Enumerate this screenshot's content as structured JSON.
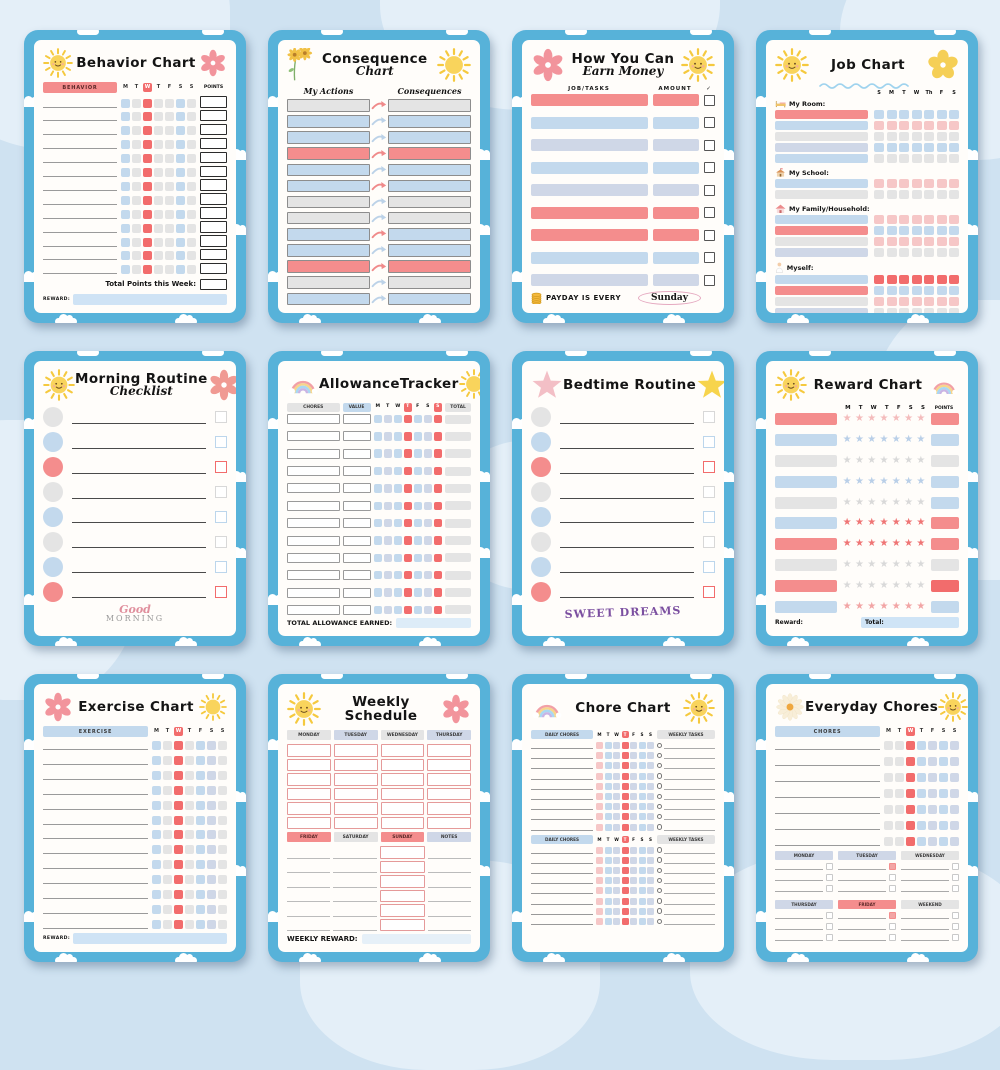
{
  "palette": {
    "pageBg": "#cfe2f1",
    "cardBlue": "#57b2d9",
    "paper": "#fffdfa",
    "pink": "#f48d8d",
    "lightPink": "#f6c7c7",
    "red": "#f26c6c",
    "blue": "#c3d9ed",
    "lavender": "#cfd7e7",
    "gray": "#e4e4e4",
    "yellow": "#f7d24d",
    "purple": "#7b4fa0",
    "ovalPink": "#e5a9c0",
    "rewardBar": "#cfe3f5",
    "pinkStar": "#f2a5a5",
    "lightPinkStar": "#f4bcbc",
    "blueStar": "#b9cfe8",
    "grayStar": "#d9d9d9",
    "redStar": "#ef7575"
  },
  "cards": [
    {
      "id": "behavior-chart",
      "type": "daygrid",
      "title": "Behavior Chart",
      "icon_left": "sun",
      "icon_right": "flower-pink",
      "header_label": "BEHAVIOR",
      "header_color": "pink",
      "days": [
        "M",
        "T",
        "W",
        "T",
        "F",
        "S",
        "S"
      ],
      "red_day_index": 2,
      "points_header": "POINTS",
      "has_points": true,
      "rows": 13,
      "square_colors": [
        "blue",
        "gray",
        "red",
        "gray",
        "gray",
        "blue",
        "gray"
      ],
      "footer_total_label": "Total Points this Week:",
      "reward_label": "REWARD:"
    },
    {
      "id": "consequence-chart",
      "type": "consequence",
      "title_main": "Consequence",
      "title_script": "Chart",
      "icon_left": "flowers-yellow",
      "icon_right": "sun-plain",
      "col_left": "My Actions",
      "col_right": "Consequences",
      "row_colors": [
        "gray",
        "blue",
        "blue",
        "pink",
        "blue",
        "blue",
        "gray",
        "gray",
        "blue",
        "blue",
        "pink",
        "gray",
        "blue"
      ],
      "arrow_colors": [
        "pink",
        "blue",
        "blue",
        "pink",
        "blue",
        "pink",
        "blue",
        "blue",
        "pink",
        "blue",
        "pink",
        "blue",
        "blue"
      ]
    },
    {
      "id": "earn-money",
      "type": "earnmoney",
      "title_main": "How You Can",
      "title_script": "Earn Money",
      "icon_left": "flower-pink",
      "icon_right": "sun",
      "col_job": "JOB/TASKS",
      "col_amount": "AMOUNT",
      "check_header": "✓",
      "row_colors": [
        "pink",
        "blue",
        "lavender",
        "blue",
        "lavender",
        "pink",
        "pink",
        "blue",
        "lavender"
      ],
      "payday_label": "PAYDAY IS EVERY",
      "payday_value": "Sunday"
    },
    {
      "id": "job-chart",
      "type": "job",
      "title": "Job Chart",
      "icon_left": "sun",
      "icon_right": "flower-yellow",
      "days": [
        "S",
        "M",
        "T",
        "W",
        "Th",
        "F",
        "S"
      ],
      "sections": [
        {
          "label": "My Room:",
          "icon": "bed",
          "rows": [
            {
              "bar": "pink",
              "sq": "blue"
            },
            {
              "bar": "blue",
              "sq": "pink"
            },
            {
              "bar": "gray",
              "sq": "gray"
            },
            {
              "bar": "lavender",
              "sq": "blue"
            },
            {
              "bar": "blue",
              "sq": "gray"
            }
          ]
        },
        {
          "label": "My School:",
          "icon": "school",
          "rows": [
            {
              "bar": "blue",
              "sq": "pink"
            },
            {
              "bar": "gray",
              "sq": "gray"
            }
          ]
        },
        {
          "label": "My Family/Household:",
          "icon": "house",
          "rows": [
            {
              "bar": "blue",
              "sq": "pink"
            },
            {
              "bar": "pink",
              "sq": "blue"
            },
            {
              "bar": "gray",
              "sq": "pink"
            },
            {
              "bar": "lavender",
              "sq": "gray"
            }
          ]
        },
        {
          "label": "Myself:",
          "icon": "person",
          "rows": [
            {
              "bar": "blue",
              "sq": "red"
            },
            {
              "bar": "pink",
              "sq": "blue"
            },
            {
              "bar": "gray",
              "sq": "pink"
            },
            {
              "bar": "lavender",
              "sq": "gray"
            }
          ]
        }
      ]
    },
    {
      "id": "morning-routine",
      "type": "checklist",
      "title_main": "Morning Routine",
      "title_script": "Checklist",
      "icon_left": "sun",
      "icon_right": "flower-salmon",
      "row_colors": [
        "gray",
        "blue",
        "pink",
        "gray",
        "blue",
        "gray",
        "blue",
        "pink"
      ],
      "footer_kind": "logo",
      "footer_script": "Good",
      "footer_caps": "MORNING"
    },
    {
      "id": "allowance-tracker",
      "type": "allowance",
      "title": "AllowanceTracker",
      "icon_left": "rainbow",
      "icon_right": "sun-plain",
      "col_chores": "CHORES",
      "col_value": "VALUE",
      "col_total": "TOTAL",
      "days": [
        "M",
        "T",
        "W",
        "T",
        "F",
        "S",
        "S"
      ],
      "red_days": [
        3,
        6
      ],
      "rows": 12,
      "square_colors": [
        "blue",
        "lavender",
        "blue",
        "red",
        "blue",
        "lavender",
        "red"
      ],
      "footer_label": "TOTAL ALLOWANCE EARNED:"
    },
    {
      "id": "bedtime-routine",
      "type": "checklist",
      "title_main": "Bedtime Routine",
      "title_script": "",
      "icon_left": "star-pink",
      "icon_right": "star-yellow",
      "row_colors": [
        "gray",
        "blue",
        "pink",
        "gray",
        "blue",
        "gray",
        "blue",
        "pink"
      ],
      "footer_kind": "dreams",
      "footer_text": "SWEET DREAMS"
    },
    {
      "id": "reward-chart",
      "type": "reward",
      "title": "Reward Chart",
      "icon_left": "sun",
      "icon_right": "rainbow",
      "days": [
        "M",
        "T",
        "W",
        "T",
        "F",
        "S",
        "S"
      ],
      "points_header": "POINTS",
      "rows": [
        {
          "bar": "pink",
          "stars": "lightPinkStar",
          "cell": "pink"
        },
        {
          "bar": "blue",
          "stars": "blueStar",
          "cell": "blue"
        },
        {
          "bar": "gray",
          "stars": "grayStar",
          "cell": "gray"
        },
        {
          "bar": "blue",
          "stars": "blueStar",
          "cell": "blue"
        },
        {
          "bar": "gray",
          "stars": "grayStar",
          "cell": "blue"
        },
        {
          "bar": "blue",
          "stars": "redStar",
          "cell": "pink"
        },
        {
          "bar": "pink",
          "stars": "redStar",
          "cell": "pink"
        },
        {
          "bar": "gray",
          "stars": "grayStar",
          "cell": "gray"
        },
        {
          "bar": "pink",
          "stars": "grayStar",
          "cell": "red"
        },
        {
          "bar": "blue",
          "stars": "pinkStar",
          "cell": "blue"
        }
      ],
      "reward_label": "Reward:",
      "total_label": "Total:"
    },
    {
      "id": "exercise-chart",
      "type": "daygrid",
      "title": "Exercise Chart",
      "icon_left": "flower-pink",
      "icon_right": "sun-plain",
      "header_label": "EXERCISE",
      "header_color": "blue",
      "days": [
        "M",
        "T",
        "W",
        "T",
        "F",
        "S",
        "S"
      ],
      "red_day_index": 2,
      "points_header": "",
      "has_points": false,
      "rows": 13,
      "square_colors": [
        "blue",
        "gray",
        "red",
        "gray",
        "blue",
        "lavender",
        "gray"
      ],
      "reward_label": "REWARD:"
    },
    {
      "id": "weekly-schedule",
      "type": "weekly",
      "title_line1": "Weekly",
      "title_line2": "Schedule",
      "icon_left": "sun",
      "icon_right": "flower-pink",
      "top_cols": [
        {
          "label": "MONDAY",
          "color": "gray",
          "cell": "box"
        },
        {
          "label": "TUESDAY",
          "color": "lavender",
          "cell": "box"
        },
        {
          "label": "WEDNESDAY",
          "color": "gray",
          "cell": "box"
        },
        {
          "label": "THURSDAY",
          "color": "lavender",
          "cell": "box"
        }
      ],
      "bottom_cols": [
        {
          "label": "FRIDAY",
          "color": "pink",
          "cell": "line"
        },
        {
          "label": "SATURDAY",
          "color": "gray",
          "cell": "line"
        },
        {
          "label": "SUNDAY",
          "color": "pink",
          "cell": "box"
        },
        {
          "label": "NOTES",
          "color": "lavender",
          "cell": "line"
        }
      ],
      "top_rows": 6,
      "bottom_rows": 6,
      "footer_label": "WEEKLY REWARD:"
    },
    {
      "id": "chore-chart",
      "type": "chore",
      "title": "Chore Chart",
      "icon_left": "rainbow",
      "icon_right": "sun",
      "daily_header": "DAILY CHORES",
      "weekly_header": "WEEKLY TASKS",
      "days": [
        "M",
        "T",
        "W",
        "T",
        "F",
        "S",
        "S"
      ],
      "red_day_index": 3,
      "square_colors": [
        "lightPink",
        "blue",
        "lavender",
        "red",
        "lavender",
        "blue",
        "lavender"
      ],
      "sections_rows": [
        9,
        8
      ]
    },
    {
      "id": "everyday-chores",
      "type": "everyday",
      "title": "Everyday Chores",
      "icon_left": "daisy",
      "icon_right": "sun",
      "header_label": "CHORES",
      "days": [
        "M",
        "T",
        "W",
        "T",
        "F",
        "S",
        "S"
      ],
      "red_day_index": 2,
      "rows": 7,
      "square_colors": [
        "gray",
        "gray",
        "red",
        "blue",
        "lavender",
        "blue",
        "lavender"
      ],
      "mini_sections": [
        {
          "rows": 3,
          "cols": [
            {
              "label": "MONDAY",
              "color": "lavender",
              "cb": "gray"
            },
            {
              "label": "TUESDAY",
              "color": "lavender",
              "cb": "pink"
            },
            {
              "label": "WEDNESDAY",
              "color": "gray",
              "cb": "gray"
            }
          ]
        },
        {
          "rows": 3,
          "cols": [
            {
              "label": "THURSDAY",
              "color": "lavender",
              "cb": "gray"
            },
            {
              "label": "FRIDAY",
              "color": "pink",
              "cb": "pink"
            },
            {
              "label": "WEEKEND",
              "color": "gray",
              "cb": "gray"
            }
          ]
        }
      ]
    }
  ]
}
